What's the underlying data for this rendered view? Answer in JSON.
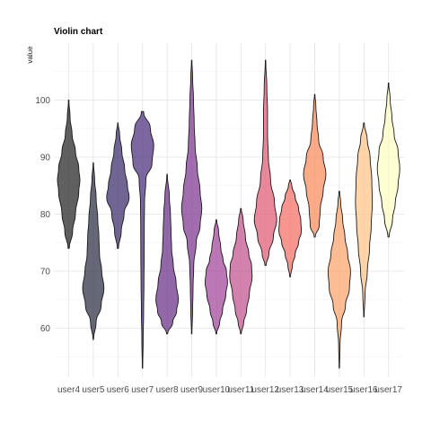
{
  "chart_data": {
    "type": "violin",
    "title": "Violin chart",
    "xlabel": "",
    "ylabel": "value",
    "ylim": [
      54,
      107
    ],
    "yticks": [
      60,
      70,
      80,
      90,
      100
    ],
    "grid": true,
    "legend": "none",
    "series": [
      {
        "category": "user4",
        "color": "#222222",
        "min": 74,
        "max": 100,
        "profile": [
          [
            74,
            0.05
          ],
          [
            77,
            0.35
          ],
          [
            80,
            0.6
          ],
          [
            84,
            0.9
          ],
          [
            86,
            1.0
          ],
          [
            88,
            0.9
          ],
          [
            91,
            0.6
          ],
          [
            94,
            0.3
          ],
          [
            97,
            0.12
          ],
          [
            100,
            0.02
          ]
        ]
      },
      {
        "category": "user5",
        "color": "#2b2d42",
        "min": 58,
        "max": 89,
        "profile": [
          [
            58,
            0.02
          ],
          [
            61,
            0.25
          ],
          [
            64,
            0.7
          ],
          [
            67,
            0.95
          ],
          [
            70,
            0.75
          ],
          [
            73,
            0.55
          ],
          [
            76,
            0.5
          ],
          [
            79,
            0.4
          ],
          [
            83,
            0.25
          ],
          [
            86,
            0.12
          ],
          [
            89,
            0.02
          ]
        ]
      },
      {
        "category": "user6",
        "color": "#3a2a6a",
        "min": 74,
        "max": 96,
        "profile": [
          [
            74,
            0.05
          ],
          [
            77,
            0.3
          ],
          [
            80,
            0.55
          ],
          [
            83,
            1.0
          ],
          [
            85,
            0.85
          ],
          [
            88,
            0.6
          ],
          [
            91,
            0.35
          ],
          [
            94,
            0.15
          ],
          [
            96,
            0.02
          ]
        ]
      },
      {
        "category": "user7",
        "color": "#4a2d7d",
        "min": 53,
        "max": 98,
        "profile": [
          [
            53,
            0.02
          ],
          [
            58,
            0.06
          ],
          [
            63,
            0.1
          ],
          [
            68,
            0.13
          ],
          [
            73,
            0.15
          ],
          [
            78,
            0.16
          ],
          [
            82,
            0.18
          ],
          [
            86,
            0.3
          ],
          [
            89,
            0.85
          ],
          [
            92,
            1.0
          ],
          [
            95,
            0.7
          ],
          [
            98,
            0.1
          ]
        ]
      },
      {
        "category": "user8",
        "color": "#682e87",
        "min": 59,
        "max": 87,
        "profile": [
          [
            59,
            0.05
          ],
          [
            61,
            0.5
          ],
          [
            63,
            0.85
          ],
          [
            65,
            1.0
          ],
          [
            68,
            0.8
          ],
          [
            71,
            0.55
          ],
          [
            74,
            0.4
          ],
          [
            77,
            0.35
          ],
          [
            80,
            0.3
          ],
          [
            83,
            0.2
          ],
          [
            87,
            0.02
          ]
        ]
      },
      {
        "category": "user9",
        "color": "#7d3490",
        "min": 59,
        "max": 107,
        "profile": [
          [
            59,
            0.02
          ],
          [
            63,
            0.08
          ],
          [
            67,
            0.12
          ],
          [
            71,
            0.18
          ],
          [
            75,
            0.4
          ],
          [
            78,
            0.75
          ],
          [
            81,
            0.9
          ],
          [
            84,
            0.75
          ],
          [
            88,
            0.5
          ],
          [
            92,
            0.3
          ],
          [
            96,
            0.22
          ],
          [
            100,
            0.16
          ],
          [
            104,
            0.08
          ],
          [
            107,
            0.02
          ]
        ]
      },
      {
        "category": "user10",
        "color": "#a2449a",
        "min": 59,
        "max": 79,
        "profile": [
          [
            59,
            0.03
          ],
          [
            61,
            0.3
          ],
          [
            63,
            0.55
          ],
          [
            66,
            0.85
          ],
          [
            68,
            1.0
          ],
          [
            70,
            0.9
          ],
          [
            72,
            0.6
          ],
          [
            74,
            0.4
          ],
          [
            77,
            0.2
          ],
          [
            79,
            0.03
          ]
        ]
      },
      {
        "category": "user11",
        "color": "#c2508d",
        "min": 59,
        "max": 81,
        "profile": [
          [
            59,
            0.03
          ],
          [
            61,
            0.25
          ],
          [
            63,
            0.5
          ],
          [
            66,
            0.75
          ],
          [
            69,
            1.0
          ],
          [
            71,
            0.95
          ],
          [
            73,
            0.7
          ],
          [
            76,
            0.4
          ],
          [
            79,
            0.2
          ],
          [
            81,
            0.03
          ]
        ]
      },
      {
        "category": "user12",
        "color": "#e05a74",
        "min": 71,
        "max": 107,
        "profile": [
          [
            71,
            0.05
          ],
          [
            73,
            0.3
          ],
          [
            76,
            0.7
          ],
          [
            79,
            1.0
          ],
          [
            82,
            0.8
          ],
          [
            86,
            0.45
          ],
          [
            90,
            0.25
          ],
          [
            94,
            0.18
          ],
          [
            98,
            0.18
          ],
          [
            102,
            0.12
          ],
          [
            107,
            0.02
          ]
        ]
      },
      {
        "category": "user13",
        "color": "#f26d64",
        "min": 69,
        "max": 86,
        "profile": [
          [
            69,
            0.03
          ],
          [
            71,
            0.2
          ],
          [
            73,
            0.45
          ],
          [
            75,
            0.75
          ],
          [
            77,
            1.0
          ],
          [
            79,
            0.95
          ],
          [
            81,
            0.75
          ],
          [
            83,
            0.45
          ],
          [
            85,
            0.15
          ],
          [
            86,
            0.03
          ]
        ]
      },
      {
        "category": "user14",
        "color": "#fb8a5a",
        "min": 76,
        "max": 101,
        "profile": [
          [
            76,
            0.05
          ],
          [
            78,
            0.4
          ],
          [
            81,
            0.5
          ],
          [
            84,
            0.75
          ],
          [
            87,
            1.0
          ],
          [
            90,
            0.75
          ],
          [
            93,
            0.35
          ],
          [
            96,
            0.2
          ],
          [
            99,
            0.1
          ],
          [
            101,
            0.02
          ]
        ]
      },
      {
        "category": "user15",
        "color": "#fca46b",
        "min": 53,
        "max": 84,
        "profile": [
          [
            53,
            0.02
          ],
          [
            57,
            0.06
          ],
          [
            61,
            0.2
          ],
          [
            64,
            0.55
          ],
          [
            67,
            0.9
          ],
          [
            70,
            1.0
          ],
          [
            73,
            0.75
          ],
          [
            76,
            0.5
          ],
          [
            79,
            0.3
          ],
          [
            82,
            0.12
          ],
          [
            84,
            0.03
          ]
        ]
      },
      {
        "category": "user16",
        "color": "#fdc386",
        "min": 62,
        "max": 96,
        "profile": [
          [
            62,
            0.02
          ],
          [
            66,
            0.1
          ],
          [
            70,
            0.3
          ],
          [
            74,
            0.5
          ],
          [
            78,
            0.65
          ],
          [
            82,
            0.75
          ],
          [
            86,
            0.7
          ],
          [
            90,
            0.55
          ],
          [
            93,
            0.3
          ],
          [
            96,
            0.03
          ]
        ]
      },
      {
        "category": "user17",
        "color": "#fcfdbf",
        "min": 76,
        "max": 103,
        "profile": [
          [
            76,
            0.05
          ],
          [
            79,
            0.35
          ],
          [
            82,
            0.6
          ],
          [
            85,
            0.85
          ],
          [
            88,
            1.0
          ],
          [
            91,
            0.85
          ],
          [
            94,
            0.5
          ],
          [
            97,
            0.3
          ],
          [
            100,
            0.15
          ],
          [
            103,
            0.02
          ]
        ]
      }
    ]
  }
}
